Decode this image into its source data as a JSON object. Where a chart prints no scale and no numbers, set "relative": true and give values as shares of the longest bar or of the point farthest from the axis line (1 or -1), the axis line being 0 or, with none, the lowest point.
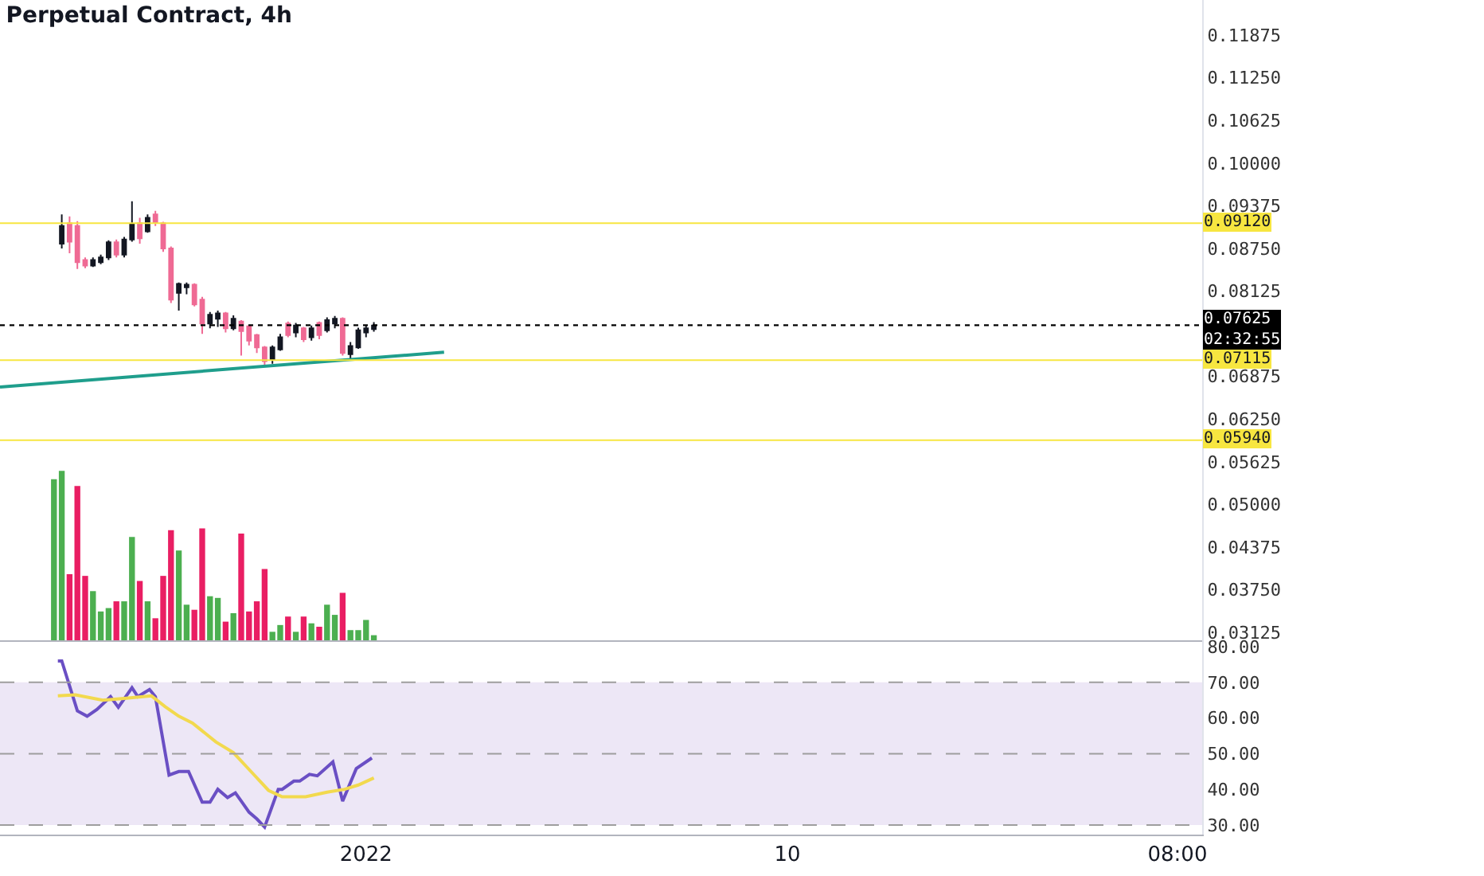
{
  "chart_data": [
    {
      "type": "candlestick",
      "title": "Perpetual Contract, 4h",
      "tick_labels": "y",
      "xlim": [
        "2021-12-24T04:20",
        "2022-01-18T20:40"
      ],
      "ylim": [
        0.0301,
        0.1239
      ],
      "yticks": [
        {
          "value": 0.03125,
          "label": "0.03125"
        },
        {
          "value": 0.0375,
          "label": "0.03750"
        },
        {
          "value": 0.04375,
          "label": "0.04375"
        },
        {
          "value": 0.05,
          "label": "0.05000"
        },
        {
          "value": 0.05625,
          "label": "0.05625"
        },
        {
          "value": 0.0625,
          "label": "0.06250"
        },
        {
          "value": 0.06875,
          "label": "0.06875"
        },
        {
          "value": 0.08125,
          "label": "0.08125"
        },
        {
          "value": 0.0875,
          "label": "0.08750"
        },
        {
          "value": 0.09375,
          "label": "0.09375"
        },
        {
          "value": 0.1,
          "label": "0.10000"
        },
        {
          "value": 0.10625,
          "label": "0.10625"
        },
        {
          "value": 0.1125,
          "label": "0.11250"
        },
        {
          "value": 0.11875,
          "label": "0.11875"
        }
      ],
      "ref_lines": [
        {
          "axis": "y",
          "value": 0.0912,
          "label": "0.09120",
          "color": "#f7e640",
          "line_style": "solid"
        },
        {
          "axis": "y",
          "value": 0.07115,
          "label": "0.07115",
          "color": "#f7e640",
          "line_style": "solid"
        },
        {
          "axis": "y",
          "value": 0.0594,
          "label": "0.05940",
          "color": "#f7e640",
          "line_style": "solid"
        },
        {
          "axis": "y",
          "value": 0.07625,
          "label": "0.07625\n02:32:55",
          "color": "#000000",
          "line_style": "dotted"
        }
      ],
      "series": [
        {
          "type": "candlestick",
          "x": [
            "2021-12-25T12:00",
            "2021-12-25T16:00",
            "2021-12-25T20:00",
            "2021-12-26T00:00",
            "2021-12-26T04:00",
            "2021-12-26T08:00",
            "2021-12-26T12:00",
            "2021-12-26T16:00",
            "2021-12-26T20:00",
            "2021-12-27T00:00",
            "2021-12-27T04:00",
            "2021-12-27T08:00",
            "2021-12-27T12:00",
            "2021-12-27T16:00",
            "2021-12-27T20:00",
            "2021-12-28T00:00",
            "2021-12-28T04:00",
            "2021-12-28T08:00",
            "2021-12-28T12:00",
            "2021-12-28T16:00",
            "2021-12-28T20:00",
            "2021-12-29T00:00",
            "2021-12-29T04:00",
            "2021-12-29T08:00",
            "2021-12-29T12:00",
            "2021-12-29T16:00",
            "2021-12-29T20:00",
            "2021-12-30T00:00",
            "2021-12-30T04:00",
            "2021-12-30T08:00",
            "2021-12-30T12:00",
            "2021-12-30T16:00",
            "2021-12-30T20:00",
            "2021-12-31T00:00",
            "2021-12-31T04:00",
            "2021-12-31T08:00",
            "2021-12-31T12:00",
            "2021-12-31T16:00",
            "2021-12-31T20:00",
            "2022-01-01T00:00",
            "2022-01-01T04:00"
          ],
          "ohlc": [
            [
              0.0882,
              0.0925,
              0.0875,
              0.0908
            ],
            [
              0.0912,
              0.0922,
              0.0868,
              0.0885
            ],
            [
              0.0908,
              0.0915,
              0.0845,
              0.0855
            ],
            [
              0.0858,
              0.0862,
              0.0846,
              0.085
            ],
            [
              0.085,
              0.0862,
              0.0848,
              0.0858
            ],
            [
              0.0855,
              0.0866,
              0.0852,
              0.0862
            ],
            [
              0.0862,
              0.0887,
              0.0858,
              0.0884
            ],
            [
              0.0884,
              0.0888,
              0.0862,
              0.0866
            ],
            [
              0.0866,
              0.0892,
              0.0862,
              0.0888
            ],
            [
              0.0888,
              0.0944,
              0.0885,
              0.091
            ],
            [
              0.0912,
              0.092,
              0.0882,
              0.089
            ],
            [
              0.09,
              0.0925,
              0.0898,
              0.092
            ],
            [
              0.0925,
              0.093,
              0.0908,
              0.0913
            ],
            [
              0.0912,
              0.0914,
              0.087,
              0.0875
            ],
            [
              0.0875,
              0.0878,
              0.0795,
              0.08
            ],
            [
              0.081,
              0.0825,
              0.0784,
              0.0823
            ],
            [
              0.0818,
              0.0825,
              0.0808,
              0.0822
            ],
            [
              0.0822,
              0.0824,
              0.079,
              0.0793
            ],
            [
              0.08,
              0.0804,
              0.075,
              0.0765
            ],
            [
              0.0765,
              0.0782,
              0.0758,
              0.0778
            ],
            [
              0.0772,
              0.0784,
              0.076,
              0.078
            ],
            [
              0.078,
              0.0782,
              0.0752,
              0.0758
            ],
            [
              0.0758,
              0.0777,
              0.0755,
              0.0772
            ],
            [
              0.0768,
              0.077,
              0.0718,
              0.0754
            ],
            [
              0.0761,
              0.0763,
              0.0733,
              0.074
            ],
            [
              0.0748,
              0.075,
              0.0722,
              0.073
            ],
            [
              0.073,
              0.0732,
              0.0703,
              0.071
            ],
            [
              0.0712,
              0.0733,
              0.0706,
              0.073
            ],
            [
              0.0727,
              0.075,
              0.0725,
              0.0745
            ],
            [
              0.0765,
              0.0768,
              0.0745,
              0.0748
            ],
            [
              0.0752,
              0.0766,
              0.0745,
              0.0762
            ],
            [
              0.0758,
              0.076,
              0.0738,
              0.0742
            ],
            [
              0.0745,
              0.0762,
              0.074,
              0.0758
            ],
            [
              0.0766,
              0.0768,
              0.0742,
              0.0748
            ],
            [
              0.0755,
              0.0774,
              0.0752,
              0.077
            ],
            [
              0.0765,
              0.0776,
              0.0758,
              0.0772
            ],
            [
              0.0772,
              0.0774,
              0.0718,
              0.0722
            ],
            [
              0.072,
              0.0738,
              0.0712,
              0.0732
            ],
            [
              0.073,
              0.0759,
              0.0728,
              0.0755
            ],
            [
              0.0752,
              0.0762,
              0.0745,
              0.0758
            ],
            [
              0.0757,
              0.0767,
              0.0753,
              0.0762
            ]
          ],
          "colors": [
            "#131722",
            "#ef6a94",
            "#ef6a94",
            "#ef6a94",
            "#131722",
            "#131722",
            "#131722",
            "#ef6a94",
            "#131722",
            "#131722",
            "#ef6a94",
            "#131722",
            "#ef6a94",
            "#ef6a94",
            "#ef6a94",
            "#131722",
            "#131722",
            "#ef6a94",
            "#ef6a94",
            "#131722",
            "#131722",
            "#ef6a94",
            "#131722",
            "#ef6a94",
            "#ef6a94",
            "#ef6a94",
            "#ef6a94",
            "#131722",
            "#131722",
            "#ef6a94",
            "#131722",
            "#ef6a94",
            "#131722",
            "#ef6a94",
            "#131722",
            "#131722",
            "#ef6a94",
            "#131722",
            "#131722",
            "#131722",
            "#131722"
          ]
        },
        {
          "type": "line",
          "color": "#1f9e8c",
          "x": [
            "2021-12-24T04:20",
            "2022-01-02T16:00"
          ],
          "values": [
            0.0672,
            0.0723
          ]
        }
      ]
    },
    {
      "type": "bar",
      "relative": true,
      "tick_labels": false,
      "xlim": [
        "2021-12-24T04:20",
        "2022-01-18T20:40"
      ],
      "x": [
        "2021-12-25T08:00",
        "2021-12-25T12:00",
        "2021-12-25T16:00",
        "2021-12-25T20:00",
        "2021-12-26T00:00",
        "2021-12-26T04:00",
        "2021-12-26T08:00",
        "2021-12-26T12:00",
        "2021-12-26T16:00",
        "2021-12-26T20:00",
        "2021-12-27T00:00",
        "2021-12-27T04:00",
        "2021-12-27T08:00",
        "2021-12-27T12:00",
        "2021-12-27T16:00",
        "2021-12-27T20:00",
        "2021-12-28T00:00",
        "2021-12-28T04:00",
        "2021-12-28T08:00",
        "2021-12-28T12:00",
        "2021-12-28T16:00",
        "2021-12-28T20:00",
        "2021-12-29T00:00",
        "2021-12-29T04:00",
        "2021-12-29T08:00",
        "2021-12-29T12:00",
        "2021-12-29T16:00",
        "2021-12-29T20:00",
        "2021-12-30T00:00",
        "2021-12-30T04:00",
        "2021-12-30T08:00",
        "2021-12-30T12:00",
        "2021-12-30T16:00",
        "2021-12-30T20:00",
        "2021-12-31T00:00",
        "2021-12-31T04:00",
        "2021-12-31T08:00",
        "2021-12-31T12:00",
        "2021-12-31T16:00",
        "2021-12-31T20:00",
        "2022-01-01T00:00",
        "2022-01-01T04:00"
      ],
      "values": [
        0.95,
        1,
        0.39,
        0.91,
        0.38,
        0.29,
        0.17,
        0.19,
        0.23,
        0.23,
        0.61,
        0.35,
        0.23,
        0.13,
        0.38,
        0.65,
        0.53,
        0.21,
        0.18,
        0.66,
        0.26,
        0.25,
        0.11,
        0.16,
        0.63,
        0.17,
        0.23,
        0.42,
        0.05,
        0.09,
        0.14,
        0.05,
        0.14,
        0.1,
        0.08,
        0.21,
        0.15,
        0.28,
        0.06,
        0.06,
        0.12,
        0.03
      ],
      "colors": [
        "#4caf50",
        "#4caf50",
        "#e91e63",
        "#e91e63",
        "#e91e63",
        "#4caf50",
        "#4caf50",
        "#4caf50",
        "#e91e63",
        "#4caf50",
        "#4caf50",
        "#e91e63",
        "#4caf50",
        "#e91e63",
        "#e91e63",
        "#e91e63",
        "#4caf50",
        "#4caf50",
        "#e91e63",
        "#e91e63",
        "#4caf50",
        "#4caf50",
        "#e91e63",
        "#4caf50",
        "#e91e63",
        "#e91e63",
        "#e91e63",
        "#e91e63",
        "#4caf50",
        "#4caf50",
        "#e91e63",
        "#4caf50",
        "#e91e63",
        "#4caf50",
        "#e91e63",
        "#4caf50",
        "#4caf50",
        "#e91e63",
        "#4caf50",
        "#4caf50",
        "#4caf50",
        "#4caf50"
      ]
    },
    {
      "type": "line",
      "xlim": [
        "2021-12-24T04:20",
        "2022-01-18T20:40"
      ],
      "xticks": [
        {
          "value": "2022-01-01",
          "label": "2022"
        },
        {
          "value": "2022-01-10",
          "label": "10"
        },
        {
          "value": "2022-01-18T08:00",
          "label": "08:00"
        }
      ],
      "ylim": [
        27.3,
        81.8
      ],
      "yticks": [
        {
          "value": 30,
          "label": "30.00"
        },
        {
          "value": 40,
          "label": "40.00"
        },
        {
          "value": 50,
          "label": "50.00"
        },
        {
          "value": 60,
          "label": "60.00"
        },
        {
          "value": 70,
          "label": "70.00"
        },
        {
          "value": 80,
          "label": "80.00"
        }
      ],
      "bands": [
        {
          "axis": "y",
          "from": 30,
          "to": 70,
          "color": "#ede7f6"
        }
      ],
      "ref_lines": [
        {
          "axis": "y",
          "value": 70,
          "color": "#9e9e9e",
          "line_style": "dashed"
        },
        {
          "axis": "y",
          "value": 50,
          "color": "#9e9e9e",
          "line_style": "dashed"
        },
        {
          "axis": "y",
          "value": 30,
          "color": "#9e9e9e",
          "line_style": "dashed"
        }
      ],
      "series": [
        {
          "color": "#6a4fc4",
          "x": [
            "2021-12-25T10:00",
            "2021-12-25T12:00",
            "2021-12-25T20:00",
            "2021-12-26T01:00",
            "2021-12-26T06:00",
            "2021-12-26T13:00",
            "2021-12-26T17:00",
            "2021-12-27T00:00",
            "2021-12-27T03:00",
            "2021-12-27T09:00",
            "2021-12-27T12:00",
            "2021-12-27T19:00",
            "2021-12-28T00:00",
            "2021-12-28T05:00",
            "2021-12-28T12:00",
            "2021-12-28T16:00",
            "2021-12-28T20:00",
            "2021-12-29T01:00",
            "2021-12-29T05:00",
            "2021-12-29T08:00",
            "2021-12-29T12:00",
            "2021-12-29T16:00",
            "2021-12-29T20:00",
            "2021-12-30T03:00",
            "2021-12-30T05:00",
            "2021-12-30T11:00",
            "2021-12-30T14:00",
            "2021-12-30T19:00",
            "2021-12-30T23:00",
            "2021-12-31T07:00",
            "2021-12-31T12:00",
            "2021-12-31T19:00",
            "2022-01-01T03:00"
          ],
          "values": [
            76,
            76,
            62,
            60.5,
            62.4,
            66,
            63,
            68.5,
            66,
            68,
            66,
            44,
            45,
            45,
            36.4,
            36.4,
            40,
            37.7,
            39,
            36.7,
            33.6,
            31.7,
            29.4,
            40,
            40,
            42.3,
            42.3,
            44.2,
            43.8,
            47.7,
            36.7,
            45.8,
            48.8
          ]
        },
        {
          "color": "#f2d94e",
          "x": [
            "2021-12-25T10:00",
            "2021-12-25T19:00",
            "2021-12-26T09:00",
            "2021-12-26T20:00",
            "2021-12-27T10:00",
            "2021-12-27T17:00",
            "2021-12-28T00:00",
            "2021-12-28T07:00",
            "2021-12-28T19:00",
            "2021-12-29T04:00",
            "2021-12-29T13:00",
            "2021-12-29T22:00",
            "2021-12-30T05:00",
            "2021-12-30T17:00",
            "2021-12-31T04:00",
            "2021-12-31T13:00",
            "2021-12-31T20:00",
            "2022-01-01T04:00"
          ],
          "values": [
            66.2,
            66.5,
            65,
            65.5,
            66.2,
            63.2,
            60.5,
            58.6,
            53.3,
            50.3,
            45,
            39.7,
            37.9,
            37.9,
            39.2,
            40,
            41.2,
            43.2
          ]
        }
      ]
    }
  ]
}
